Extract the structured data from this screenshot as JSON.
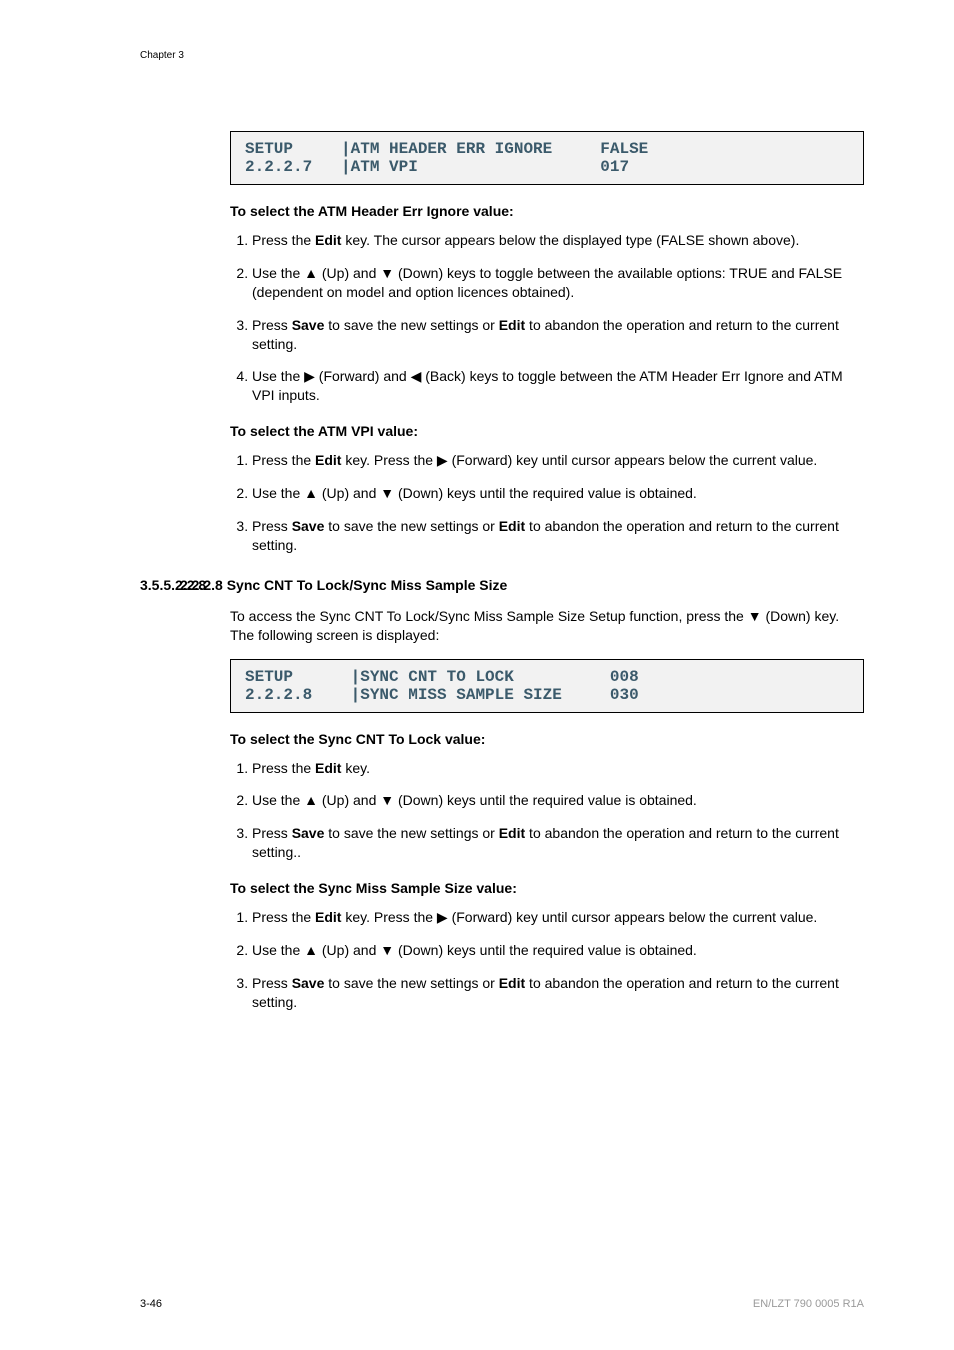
{
  "chapter": "Chapter 3",
  "screen1": {
    "line1": "SETUP     |ATM HEADER ERR IGNORE     FALSE",
    "line2": "2.2.2.7   |ATM VPI                   017"
  },
  "h1": "To select the ATM Header Err Ignore value:",
  "list1": {
    "i1a": "Press the ",
    "i1b": "Edit",
    "i1c": " key. The cursor appears below the displayed type (FALSE shown above).",
    "i2a": "Use the ▲ (Up) and ▼ (Down) keys to toggle between the available options: TRUE and FALSE (dependent on model and option licences obtained).",
    "i3a": "Press ",
    "i3b": "Save",
    "i3c": " to save the new settings or ",
    "i3d": "Edit",
    "i3e": " to abandon the operation and return to the current setting.",
    "i4a": "Use the ▶ (Forward) and ◀ (Back) keys to toggle between the ATM Header Err Ignore and ATM VPI inputs."
  },
  "h2": "To select the ATM VPI value:",
  "list2": {
    "i1a": "Press the ",
    "i1b": "Edit",
    "i1c": " key. Press the ▶ (Forward) key until cursor appears below the current value.",
    "i2a": "Use the ▲ (Up) and ▼ (Down) keys until the required value is obtained.",
    "i3a": "Press ",
    "i3b": "Save",
    "i3c": " to save the new settings or ",
    "i3d": "Edit",
    "i3e": " to abandon the operation and return to the current setting."
  },
  "section": {
    "num": "3.5.5.2.2.8",
    "title": "2.2.2.8 Sync CNT To Lock/Sync Miss Sample Size"
  },
  "para1": "To access the Sync CNT To Lock/Sync Miss Sample Size Setup function, press the ▼ (Down) key. The following screen is displayed:",
  "screen2": {
    "line1": "SETUP      |SYNC CNT TO LOCK          008",
    "line2": "2.2.2.8    |SYNC MISS SAMPLE SIZE     030"
  },
  "h3": "To select the Sync CNT To Lock value:",
  "list3": {
    "i1a": "Press the ",
    "i1b": "Edit",
    "i1c": " key.",
    "i2a": "Use the ▲ (Up) and ▼ (Down) keys until the required value is obtained.",
    "i3a": "Press ",
    "i3b": "Save",
    "i3c": " to save the new settings or ",
    "i3d": "Edit",
    "i3e": " to abandon the operation and return to the current setting.."
  },
  "h4": "To select the Sync Miss Sample Size value:",
  "list4": {
    "i1a": "Press the ",
    "i1b": "Edit",
    "i1c": " key. Press the ▶ (Forward) key until cursor appears below the current value.",
    "i2a": "Use the ▲ (Up) and ▼ (Down) keys until the required value is obtained.",
    "i3a": "Press ",
    "i3b": "Save",
    "i3c": " to save the new settings or ",
    "i3d": "Edit",
    "i3e": " to abandon the operation and return to the current setting."
  },
  "footer": {
    "page": "3-46",
    "ref": "EN/LZT 790 0005 R1A"
  }
}
